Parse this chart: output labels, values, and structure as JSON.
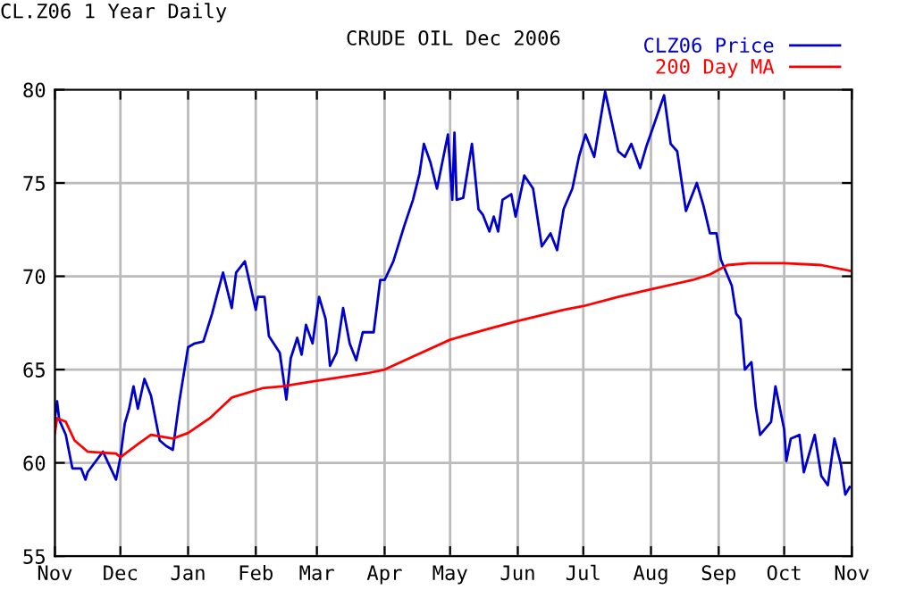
{
  "chart_data": {
    "type": "line",
    "title": "CRUDE OIL Dec 2006",
    "annotations": [
      "CL.Z06 1 Year Daily"
    ],
    "xlim": [
      "2005-11-01",
      "2006-11-01"
    ],
    "xticks": [
      {
        "value": "2005-11-01",
        "label": "Nov"
      },
      {
        "value": "2005-12-01",
        "label": "Dec"
      },
      {
        "value": "2006-01-01",
        "label": "Jan"
      },
      {
        "value": "2006-02-01",
        "label": "Feb"
      },
      {
        "value": "2006-03-01",
        "label": "Mar"
      },
      {
        "value": "2006-04-01",
        "label": "Apr"
      },
      {
        "value": "2006-05-01",
        "label": "May"
      },
      {
        "value": "2006-06-01",
        "label": "Jun"
      },
      {
        "value": "2006-07-01",
        "label": "Jul"
      },
      {
        "value": "2006-08-01",
        "label": "Aug"
      },
      {
        "value": "2006-09-01",
        "label": "Sep"
      },
      {
        "value": "2006-10-01",
        "label": "Oct"
      },
      {
        "value": "2006-11-01",
        "label": "Nov"
      }
    ],
    "ylim": [
      55,
      80
    ],
    "yticks": [
      55,
      60,
      65,
      70,
      75,
      80
    ],
    "grid": true,
    "legend": "top right",
    "line_style": "solid",
    "series": [
      {
        "name": "CLZ06 Price",
        "color": "#0000cc",
        "x": [
          "2005-11-01",
          "2005-11-02",
          "2005-11-03",
          "2005-11-06",
          "2005-11-09",
          "2005-11-13",
          "2005-11-15",
          "2005-11-16",
          "2005-11-23",
          "2005-11-29",
          "2005-12-01",
          "2005-12-03",
          "2005-12-05",
          "2005-12-07",
          "2005-12-09",
          "2005-12-12",
          "2005-12-15",
          "2005-12-19",
          "2005-12-22",
          "2005-12-25",
          "2005-12-28",
          "2006-01-01",
          "2006-01-04",
          "2006-01-08",
          "2006-01-12",
          "2006-01-14",
          "2006-01-17",
          "2006-01-21",
          "2006-01-23",
          "2006-01-27",
          "2006-02-01",
          "2006-02-02",
          "2006-02-05",
          "2006-02-07",
          "2006-02-12",
          "2006-02-15",
          "2006-02-17",
          "2006-02-20",
          "2006-02-22",
          "2006-02-24",
          "2006-02-27",
          "2006-03-02",
          "2006-03-05",
          "2006-03-07",
          "2006-03-10",
          "2006-03-13",
          "2006-03-16",
          "2006-03-19",
          "2006-03-22",
          "2006-03-27",
          "2006-03-30",
          "2006-04-01",
          "2006-04-05",
          "2006-04-10",
          "2006-04-14",
          "2006-04-17",
          "2006-04-19",
          "2006-04-22",
          "2006-04-25",
          "2006-04-30",
          "2006-05-02",
          "2006-05-03",
          "2006-05-04",
          "2006-05-07",
          "2006-05-11",
          "2006-05-14",
          "2006-05-16",
          "2006-05-19",
          "2006-05-21",
          "2006-05-23",
          "2006-05-25",
          "2006-05-29",
          "2006-05-31",
          "2006-06-04",
          "2006-06-08",
          "2006-06-12",
          "2006-06-16",
          "2006-06-19",
          "2006-06-22",
          "2006-06-26",
          "2006-06-29",
          "2006-07-02",
          "2006-07-06",
          "2006-07-11",
          "2006-07-17",
          "2006-07-20",
          "2006-07-23",
          "2006-07-27",
          "2006-07-30",
          "2006-08-02",
          "2006-08-07",
          "2006-08-10",
          "2006-08-13",
          "2006-08-17",
          "2006-08-22",
          "2006-08-25",
          "2006-08-28",
          "2006-08-31",
          "2006-09-02",
          "2006-09-07",
          "2006-09-09",
          "2006-09-11",
          "2006-09-13",
          "2006-09-16",
          "2006-09-18",
          "2006-09-20",
          "2006-09-25",
          "2006-09-27",
          "2006-10-01",
          "2006-10-02",
          "2006-10-04",
          "2006-10-08",
          "2006-10-10",
          "2006-10-15",
          "2006-10-18",
          "2006-10-21",
          "2006-10-24",
          "2006-10-27",
          "2006-10-29",
          "2006-10-31"
        ],
        "values": [
          62.4,
          63.3,
          62.3,
          61.5,
          59.7,
          59.7,
          59.1,
          59.5,
          60.6,
          59.1,
          60.3,
          62.1,
          62.9,
          64.1,
          62.9,
          64.5,
          63.6,
          61.2,
          60.9,
          60.7,
          63.3,
          66.2,
          66.4,
          66.5,
          68.0,
          68.9,
          70.2,
          68.3,
          70.2,
          70.8,
          68.2,
          68.9,
          68.9,
          66.8,
          65.9,
          63.4,
          65.6,
          66.7,
          65.8,
          67.4,
          66.4,
          68.9,
          67.7,
          65.2,
          65.9,
          68.3,
          66.4,
          65.5,
          67.0,
          67.0,
          69.8,
          69.8,
          70.8,
          72.7,
          74.1,
          75.5,
          77.1,
          76.1,
          74.7,
          77.6,
          74.1,
          77.7,
          74.1,
          74.2,
          77.1,
          73.6,
          73.3,
          72.4,
          73.2,
          72.4,
          74.1,
          74.4,
          73.2,
          75.4,
          74.7,
          71.6,
          72.3,
          71.4,
          73.6,
          74.7,
          76.4,
          77.6,
          76.4,
          79.9,
          76.7,
          76.4,
          77.1,
          75.8,
          77.0,
          78.0,
          79.7,
          77.1,
          76.7,
          73.5,
          75.0,
          73.8,
          72.3,
          72.3,
          70.9,
          69.5,
          68.0,
          67.7,
          65.0,
          65.4,
          63.0,
          61.5,
          62.2,
          64.1,
          61.8,
          60.1,
          61.3,
          61.5,
          59.5,
          61.5,
          59.3,
          58.8,
          61.3,
          59.9,
          58.3,
          58.7
        ]
      },
      {
        "name": "200 Day MA",
        "color": "#ff0000",
        "x": [
          "2005-11-01",
          "2005-11-02",
          "2005-11-06",
          "2005-11-10",
          "2005-11-16",
          "2005-11-29",
          "2005-12-01",
          "2005-12-09",
          "2005-12-15",
          "2005-12-25",
          "2006-01-01",
          "2006-01-11",
          "2006-01-21",
          "2006-02-04",
          "2006-02-13",
          "2006-03-01",
          "2006-03-24",
          "2006-04-01",
          "2006-04-14",
          "2006-05-01",
          "2006-05-07",
          "2006-05-19",
          "2006-06-01",
          "2006-06-22",
          "2006-07-01",
          "2006-07-17",
          "2006-08-01",
          "2006-08-20",
          "2006-08-28",
          "2006-09-05",
          "2006-09-15",
          "2006-10-01",
          "2006-10-18",
          "2006-10-31"
        ],
        "values": [
          61.6,
          62.4,
          62.2,
          61.2,
          60.6,
          60.5,
          60.3,
          61.0,
          61.5,
          61.3,
          61.6,
          62.4,
          63.5,
          64.0,
          64.1,
          64.4,
          64.8,
          65.0,
          65.7,
          66.6,
          66.8,
          67.2,
          67.6,
          68.2,
          68.4,
          68.9,
          69.3,
          69.8,
          70.1,
          70.6,
          70.7,
          70.7,
          70.6,
          70.3
        ]
      }
    ]
  }
}
